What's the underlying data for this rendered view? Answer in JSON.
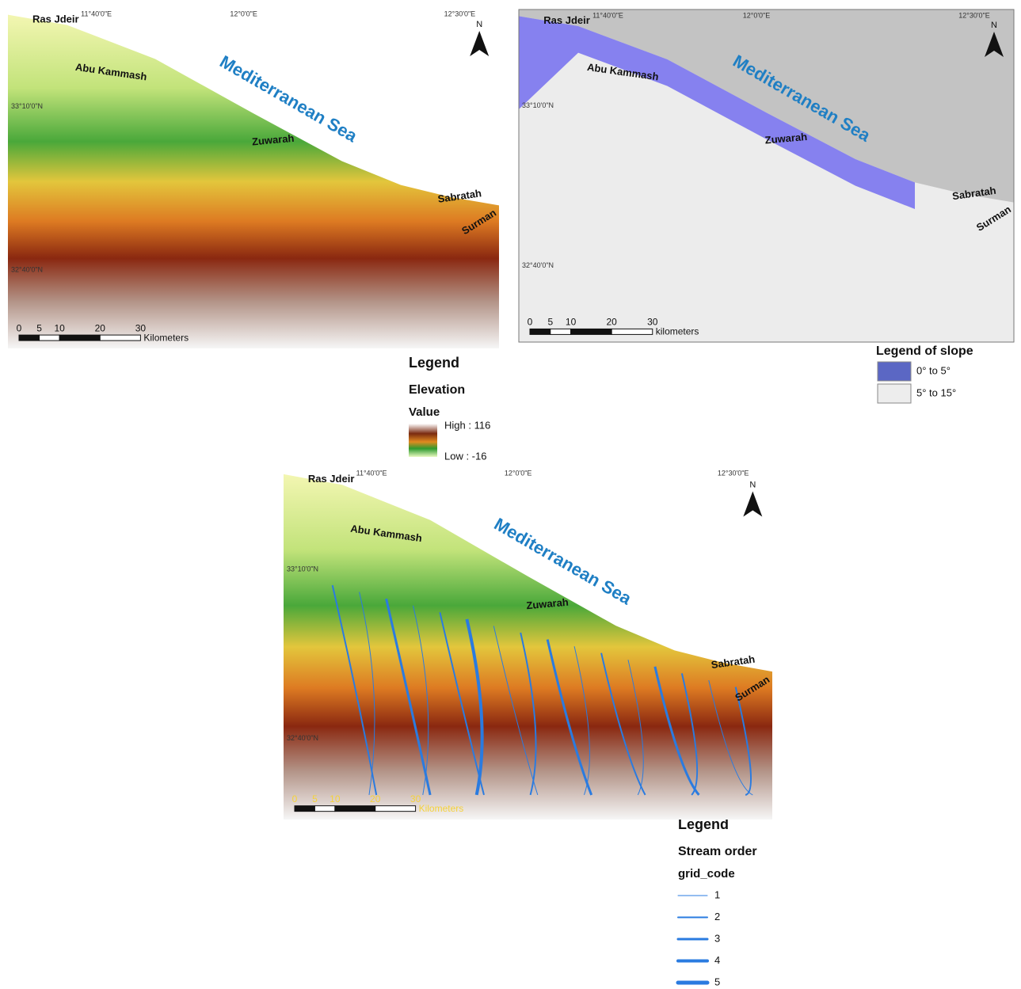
{
  "maps": [
    {
      "lon_labels": [
        "11°40'0\"E",
        "12°0'0\"E",
        "12°30'0\"E"
      ],
      "lat_labels": [
        "33°10'0\"N",
        "32°40'0\"N"
      ],
      "places": [
        "Ras Jdeir",
        "Abu Kammash",
        "Mediterranean Sea",
        "Zuwarah",
        "Sabratah",
        "Surman"
      ],
      "north": "N",
      "scale_ticks": [
        0,
        5,
        10,
        20,
        30
      ],
      "scale_unit": "Kilometers"
    },
    {
      "lon_labels": [
        "11°40'0\"E",
        "12°0'0\"E",
        "12°30'0\"E"
      ],
      "lat_labels": [
        "33°10'0\"N",
        "32°40'0\"N"
      ],
      "places": [
        "Ras Jdeir",
        "Abu Kammash",
        "Mediterranean Sea",
        "Zuwarah",
        "Sabratah",
        "Surman"
      ],
      "north": "N",
      "scale_ticks": [
        0,
        5,
        10,
        20,
        30
      ],
      "scale_unit": "kilometers"
    },
    {
      "lon_labels": [
        "11°40'0\"E",
        "12°0'0\"E",
        "12°30'0\"E"
      ],
      "lat_labels": [
        "33°10'0\"N",
        "32°40'0\"N"
      ],
      "places": [
        "Ras Jdeir",
        "Abu Kammash",
        "Mediterranean Sea",
        "Zuwarah",
        "Sabratah",
        "Surman"
      ],
      "north": "N",
      "scale_ticks": [
        0,
        5,
        10,
        20,
        30
      ],
      "scale_unit": "Kilometers"
    }
  ],
  "elevation_legend": {
    "title": "Legend",
    "layer": "Elevation",
    "field": "Value",
    "high": "High : 116",
    "low": "Low : -16"
  },
  "slope_legend": {
    "title": "Legend of slope",
    "classes": [
      "0° to 5°",
      "5° to 15°"
    ]
  },
  "stream_legend": {
    "title": "Legend",
    "layer": "Stream order",
    "field": "grid_code",
    "codes": [
      1,
      2,
      3,
      4,
      5
    ]
  }
}
